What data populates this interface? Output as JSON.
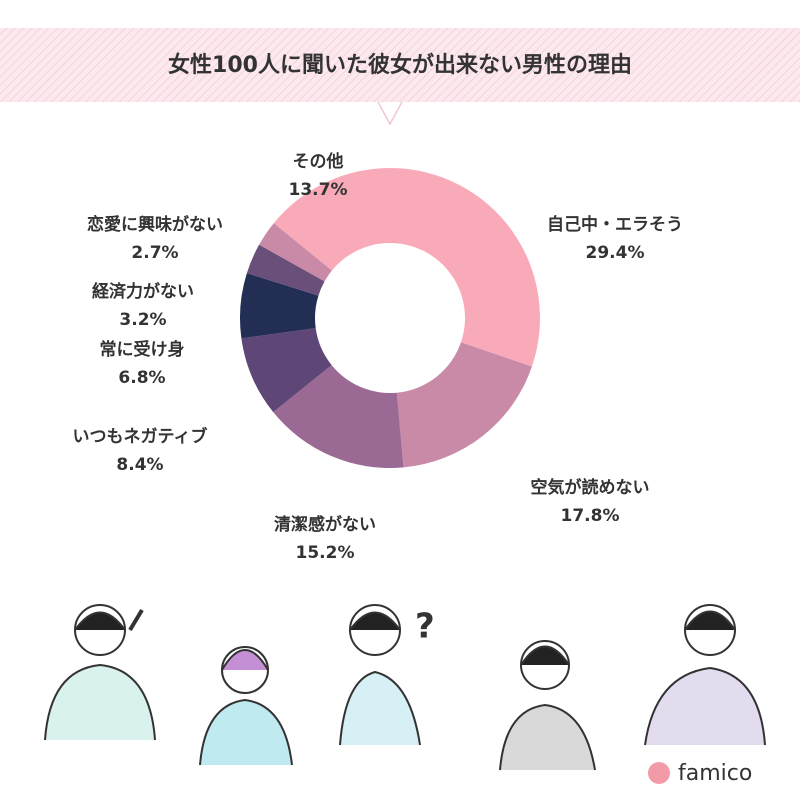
{
  "chart_data": {
    "type": "donut",
    "title": "女性100人に聞いた彼女が出来ない男性の理由",
    "categories": [
      "自己中・エラそう",
      "空気が読めない",
      "清潔感がない",
      "いつもネガティブ",
      "常に受け身",
      "経済力がない",
      "恋愛に興味がない",
      "その他"
    ],
    "values": [
      29.4,
      17.8,
      15.2,
      8.4,
      6.8,
      3.2,
      2.7,
      13.7
    ],
    "value_labels": [
      "29.4%",
      "17.8%",
      "15.2%",
      "8.4%",
      "6.8%",
      "3.2%",
      "2.7%",
      "13.7%"
    ],
    "colors": [
      "#f9aab9",
      "#c98aa8",
      "#9a6a94",
      "#5e4677",
      "#232e55",
      "#6b4f7b",
      "#c98aa8",
      "#f9aab9"
    ]
  },
  "brand": "famico"
}
